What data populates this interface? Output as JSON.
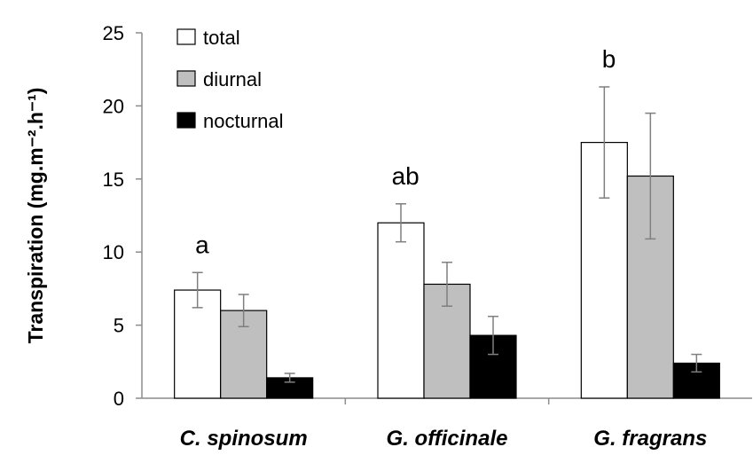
{
  "chart_data": {
    "type": "bar",
    "ylabel": "Transpiration (mg.m⁻².h⁻¹)",
    "xlabel": "",
    "ylim": [
      0,
      25
    ],
    "yticks": [
      0,
      5,
      10,
      15,
      20,
      25
    ],
    "categories": [
      "C. spinosum",
      "G. officinale",
      "G. fragrans"
    ],
    "series": [
      {
        "name": "total",
        "color": "#ffffff",
        "values": [
          7.4,
          12.0,
          17.5
        ],
        "errors": [
          1.2,
          1.3,
          3.8
        ]
      },
      {
        "name": "diurnal",
        "color": "#bfbfbf",
        "values": [
          6.0,
          7.8,
          15.2
        ],
        "errors": [
          1.1,
          1.5,
          4.3
        ]
      },
      {
        "name": "nocturnal",
        "color": "#000000",
        "values": [
          1.4,
          4.3,
          2.4
        ],
        "errors": [
          0.3,
          1.3,
          0.6
        ]
      }
    ],
    "significance_labels": [
      "a",
      "ab",
      "b"
    ],
    "legend_position": "top-left",
    "grid": false
  }
}
